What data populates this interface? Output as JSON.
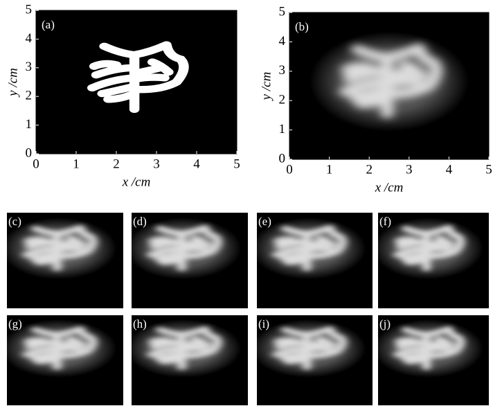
{
  "panels": [
    {
      "label": "(a)",
      "xlabel": "x /cm",
      "ylabel": "y /cm",
      "xlim": [
        0,
        5
      ],
      "ylim": [
        0,
        5
      ],
      "xticks": [
        0,
        1,
        2,
        3,
        4,
        5
      ],
      "yticks": [
        0,
        1,
        2,
        3,
        4,
        5
      ]
    },
    {
      "label": "(b)",
      "xlabel": "x /cm",
      "ylabel": "y /cm",
      "xlim": [
        0,
        5
      ],
      "ylim": [
        0,
        5
      ],
      "xticks": [
        0,
        1,
        2,
        3,
        4,
        5
      ],
      "yticks": [
        0,
        1,
        2,
        3,
        4,
        5
      ]
    }
  ],
  "small_panels": [
    "(c)",
    "(d)",
    "(e)",
    "(f)",
    "(g)",
    "(h)",
    "(i)",
    "(j)"
  ]
}
